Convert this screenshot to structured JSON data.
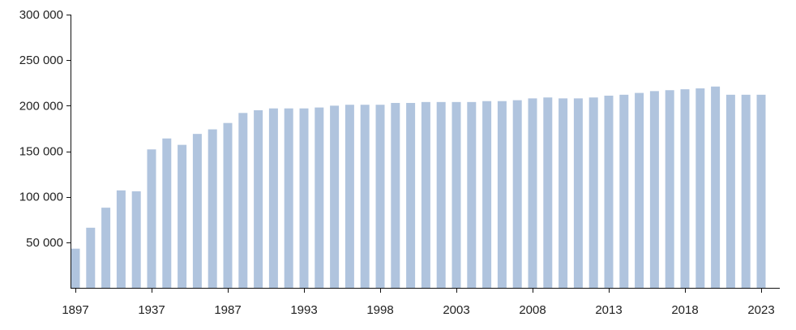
{
  "chart_data": {
    "type": "bar",
    "title": "",
    "xlabel": "",
    "ylabel": "",
    "ylim": [
      0,
      300000
    ],
    "grid": false,
    "bar_color": "#b0c4de",
    "y_ticks": [
      {
        "value": 50000,
        "label": "50 000"
      },
      {
        "value": 100000,
        "label": "100 000"
      },
      {
        "value": 150000,
        "label": "150 000"
      },
      {
        "value": 200000,
        "label": "200 000"
      },
      {
        "value": 250000,
        "label": "250 000"
      },
      {
        "value": 300000,
        "label": "300 000"
      }
    ],
    "x_tick_labels": [
      "1897",
      "1937",
      "1987",
      "1993",
      "1998",
      "2003",
      "2008",
      "2013",
      "2018",
      "2023"
    ],
    "x_tick_bar_index": [
      0,
      5,
      10,
      15,
      20,
      25,
      30,
      35,
      40,
      45
    ],
    "values": [
      43000,
      66000,
      88000,
      107000,
      106000,
      152000,
      164000,
      157000,
      169000,
      174000,
      181000,
      192000,
      195000,
      197000,
      197000,
      197000,
      198000,
      200000,
      201000,
      201000,
      201000,
      203000,
      203000,
      204000,
      204000,
      204000,
      204000,
      205000,
      205000,
      206000,
      208000,
      209000,
      208000,
      208000,
      209000,
      211000,
      212000,
      214000,
      216000,
      217000,
      218000,
      219000,
      221000,
      212000,
      212000,
      212000
    ]
  }
}
